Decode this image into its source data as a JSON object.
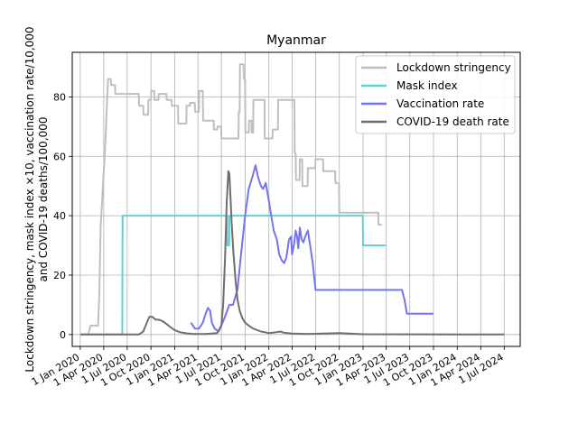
{
  "chart_data": {
    "type": "line",
    "title": "Myanmar",
    "ylabel_lines": [
      "Lockdown stringency, mask index ×10, vaccination rate/10,000",
      "and COVID-19 deaths/100,000"
    ],
    "xlabel": "",
    "ylim": [
      -4,
      95
    ],
    "xlim": [
      "2019-12-01",
      "2024-09-01"
    ],
    "yticks": [
      0,
      20,
      40,
      60,
      80
    ],
    "xticks": [
      {
        "date": "2020-01-01",
        "label": "1 Jan 2020"
      },
      {
        "date": "2020-04-01",
        "label": "1 Apr 2020"
      },
      {
        "date": "2020-07-01",
        "label": "1 Jul 2020"
      },
      {
        "date": "2020-10-01",
        "label": "1 Oct 2020"
      },
      {
        "date": "2021-01-01",
        "label": "1 Jan 2021"
      },
      {
        "date": "2021-04-01",
        "label": "1 Apr 2021"
      },
      {
        "date": "2021-07-01",
        "label": "1 Jul 2021"
      },
      {
        "date": "2021-10-01",
        "label": "1 Oct 2021"
      },
      {
        "date": "2022-01-01",
        "label": "1 Jan 2022"
      },
      {
        "date": "2022-04-01",
        "label": "1 Apr 2022"
      },
      {
        "date": "2022-07-01",
        "label": "1 Jul 2022"
      },
      {
        "date": "2022-10-01",
        "label": "1 Oct 2022"
      },
      {
        "date": "2023-01-01",
        "label": "1 Jan 2023"
      },
      {
        "date": "2023-04-01",
        "label": "1 Apr 2023"
      },
      {
        "date": "2023-07-01",
        "label": "1 Jul 2023"
      },
      {
        "date": "2023-10-01",
        "label": "1 Oct 2023"
      },
      {
        "date": "2024-01-01",
        "label": "1 Jan 2024"
      },
      {
        "date": "2024-04-01",
        "label": "1 Apr 2024"
      },
      {
        "date": "2024-07-01",
        "label": "1 Jul 2024"
      }
    ],
    "grid": true,
    "legend_position": "top-right",
    "series": [
      {
        "name": "Lockdown stringency",
        "color": "#bfbfbf",
        "points": [
          [
            "2020-01-01",
            0
          ],
          [
            "2020-02-01",
            0
          ],
          [
            "2020-02-10",
            3
          ],
          [
            "2020-03-10",
            3
          ],
          [
            "2020-03-15",
            14
          ],
          [
            "2020-03-20",
            36
          ],
          [
            "2020-03-25",
            44
          ],
          [
            "2020-04-01",
            55
          ],
          [
            "2020-04-06",
            62
          ],
          [
            "2020-04-10",
            70
          ],
          [
            "2020-04-14",
            79
          ],
          [
            "2020-04-18",
            86
          ],
          [
            "2020-04-28",
            86
          ],
          [
            "2020-05-01",
            84
          ],
          [
            "2020-05-15",
            84
          ],
          [
            "2020-05-16",
            81
          ],
          [
            "2020-08-15",
            81
          ],
          [
            "2020-08-16",
            77
          ],
          [
            "2020-09-01",
            77
          ],
          [
            "2020-09-02",
            74
          ],
          [
            "2020-09-20",
            74
          ],
          [
            "2020-09-21",
            79
          ],
          [
            "2020-10-01",
            79
          ],
          [
            "2020-10-02",
            82
          ],
          [
            "2020-10-14",
            82
          ],
          [
            "2020-10-15",
            79
          ],
          [
            "2020-10-30",
            79
          ],
          [
            "2020-10-31",
            81
          ],
          [
            "2020-11-30",
            81
          ],
          [
            "2020-12-01",
            79
          ],
          [
            "2020-12-20",
            79
          ],
          [
            "2020-12-21",
            77
          ],
          [
            "2021-01-14",
            77
          ],
          [
            "2021-01-15",
            71
          ],
          [
            "2021-02-15",
            71
          ],
          [
            "2021-02-16",
            77
          ],
          [
            "2021-03-01",
            77
          ],
          [
            "2021-03-02",
            78
          ],
          [
            "2021-03-20",
            78
          ],
          [
            "2021-03-21",
            75
          ],
          [
            "2021-04-05",
            75
          ],
          [
            "2021-04-06",
            82
          ],
          [
            "2021-04-20",
            82
          ],
          [
            "2021-04-21",
            72
          ],
          [
            "2021-06-01",
            72
          ],
          [
            "2021-06-02",
            69
          ],
          [
            "2021-06-15",
            69
          ],
          [
            "2021-06-16",
            70
          ],
          [
            "2021-06-30",
            70
          ],
          [
            "2021-07-01",
            66
          ],
          [
            "2021-09-05",
            66
          ],
          [
            "2021-09-06",
            75
          ],
          [
            "2021-09-10",
            75
          ],
          [
            "2021-09-11",
            91
          ],
          [
            "2021-09-25",
            91
          ],
          [
            "2021-09-26",
            86
          ],
          [
            "2021-10-01",
            86
          ],
          [
            "2021-10-02",
            68
          ],
          [
            "2021-10-15",
            68
          ],
          [
            "2021-10-16",
            72
          ],
          [
            "2021-10-25",
            72
          ],
          [
            "2021-10-26",
            68
          ],
          [
            "2021-11-01",
            68
          ],
          [
            "2021-11-02",
            79
          ],
          [
            "2021-12-15",
            79
          ],
          [
            "2021-12-16",
            66
          ],
          [
            "2022-01-15",
            66
          ],
          [
            "2022-01-16",
            69
          ],
          [
            "2022-02-05",
            69
          ],
          [
            "2022-02-06",
            79
          ],
          [
            "2022-04-10",
            79
          ],
          [
            "2022-04-11",
            61
          ],
          [
            "2022-04-15",
            61
          ],
          [
            "2022-04-16",
            52
          ],
          [
            "2022-04-30",
            52
          ],
          [
            "2022-05-01",
            59
          ],
          [
            "2022-05-10",
            59
          ],
          [
            "2022-05-11",
            50
          ],
          [
            "2022-05-31",
            50
          ],
          [
            "2022-06-01",
            56
          ],
          [
            "2022-06-30",
            56
          ],
          [
            "2022-07-01",
            59
          ],
          [
            "2022-07-30",
            59
          ],
          [
            "2022-07-31",
            55
          ],
          [
            "2022-09-15",
            55
          ],
          [
            "2022-09-16",
            51
          ],
          [
            "2022-09-30",
            51
          ],
          [
            "2022-10-01",
            41
          ],
          [
            "2023-03-01",
            41
          ],
          [
            "2023-03-02",
            37
          ],
          [
            "2023-03-15",
            37
          ]
        ]
      },
      {
        "name": "Mask index",
        "color": "#5fd3cf",
        "points": [
          [
            "2020-01-01",
            0
          ],
          [
            "2020-06-12",
            0
          ],
          [
            "2020-06-13",
            40
          ],
          [
            "2021-07-23",
            40
          ],
          [
            "2021-07-24",
            30
          ],
          [
            "2021-07-31",
            30
          ],
          [
            "2021-08-01",
            40
          ],
          [
            "2022-12-31",
            40
          ],
          [
            "2023-01-01",
            30
          ],
          [
            "2023-03-31",
            30
          ]
        ]
      },
      {
        "name": "Vaccination rate",
        "color": "#7474ee",
        "points": [
          [
            "2021-03-05",
            4
          ],
          [
            "2021-03-20",
            2
          ],
          [
            "2021-04-05",
            2
          ],
          [
            "2021-04-20",
            4
          ],
          [
            "2021-05-01",
            7
          ],
          [
            "2021-05-10",
            9
          ],
          [
            "2021-05-18",
            8
          ],
          [
            "2021-05-25",
            4
          ],
          [
            "2021-06-05",
            2
          ],
          [
            "2021-06-20",
            1
          ],
          [
            "2021-07-01",
            3
          ],
          [
            "2021-07-15",
            6
          ],
          [
            "2021-08-01",
            10
          ],
          [
            "2021-08-15",
            10
          ],
          [
            "2021-09-01",
            15
          ],
          [
            "2021-09-15",
            27
          ],
          [
            "2021-10-01",
            40
          ],
          [
            "2021-10-15",
            49
          ],
          [
            "2021-11-01",
            54
          ],
          [
            "2021-11-10",
            57
          ],
          [
            "2021-11-20",
            53
          ],
          [
            "2021-12-01",
            50
          ],
          [
            "2021-12-10",
            49
          ],
          [
            "2021-12-20",
            51
          ],
          [
            "2022-01-01",
            45
          ],
          [
            "2022-01-10",
            40
          ],
          [
            "2022-01-20",
            35
          ],
          [
            "2022-02-01",
            32
          ],
          [
            "2022-02-10",
            27
          ],
          [
            "2022-02-20",
            25
          ],
          [
            "2022-03-01",
            24
          ],
          [
            "2022-03-10",
            26
          ],
          [
            "2022-03-20",
            32
          ],
          [
            "2022-03-28",
            33
          ],
          [
            "2022-04-01",
            27
          ],
          [
            "2022-04-08",
            30
          ],
          [
            "2022-04-15",
            35
          ],
          [
            "2022-04-20",
            33
          ],
          [
            "2022-04-25",
            29
          ],
          [
            "2022-05-01",
            36
          ],
          [
            "2022-05-08",
            32
          ],
          [
            "2022-05-15",
            31
          ],
          [
            "2022-05-22",
            33
          ],
          [
            "2022-06-01",
            35
          ],
          [
            "2022-06-10",
            30
          ],
          [
            "2022-06-20",
            24
          ],
          [
            "2022-07-01",
            15
          ],
          [
            "2023-06-01",
            15
          ],
          [
            "2023-06-10",
            12
          ],
          [
            "2023-06-20",
            7
          ],
          [
            "2023-09-30",
            7
          ]
        ]
      },
      {
        "name": "COVID-19 death rate",
        "color": "#6e6e6e",
        "points": [
          [
            "2020-01-01",
            0
          ],
          [
            "2020-08-15",
            0
          ],
          [
            "2020-09-01",
            1
          ],
          [
            "2020-09-15",
            4
          ],
          [
            "2020-09-25",
            6
          ],
          [
            "2020-10-05",
            6
          ],
          [
            "2020-10-20",
            5
          ],
          [
            "2020-11-01",
            5
          ],
          [
            "2020-11-15",
            4.5
          ],
          [
            "2020-12-01",
            3.5
          ],
          [
            "2020-12-15",
            2.5
          ],
          [
            "2021-01-01",
            1.5
          ],
          [
            "2021-01-20",
            0.8
          ],
          [
            "2021-02-15",
            0.4
          ],
          [
            "2021-03-15",
            0.2
          ],
          [
            "2021-05-01",
            0.2
          ],
          [
            "2021-06-15",
            0.5
          ],
          [
            "2021-07-01",
            3
          ],
          [
            "2021-07-08",
            10
          ],
          [
            "2021-07-15",
            25
          ],
          [
            "2021-07-22",
            45
          ],
          [
            "2021-07-28",
            55
          ],
          [
            "2021-08-01",
            54
          ],
          [
            "2021-08-05",
            47
          ],
          [
            "2021-08-10",
            37
          ],
          [
            "2021-08-17",
            27
          ],
          [
            "2021-08-25",
            18
          ],
          [
            "2021-09-01",
            12
          ],
          [
            "2021-09-10",
            8
          ],
          [
            "2021-09-20",
            5.5
          ],
          [
            "2021-10-01",
            4
          ],
          [
            "2021-10-15",
            3
          ],
          [
            "2021-11-01",
            2
          ],
          [
            "2021-12-01",
            1
          ],
          [
            "2022-01-01",
            0.5
          ],
          [
            "2022-02-01",
            0.8
          ],
          [
            "2022-02-15",
            1
          ],
          [
            "2022-03-01",
            0.6
          ],
          [
            "2022-04-01",
            0.3
          ],
          [
            "2022-06-01",
            0.2
          ],
          [
            "2022-10-01",
            0.5
          ],
          [
            "2023-01-01",
            0.1
          ],
          [
            "2024-07-01",
            0
          ]
        ]
      }
    ]
  }
}
